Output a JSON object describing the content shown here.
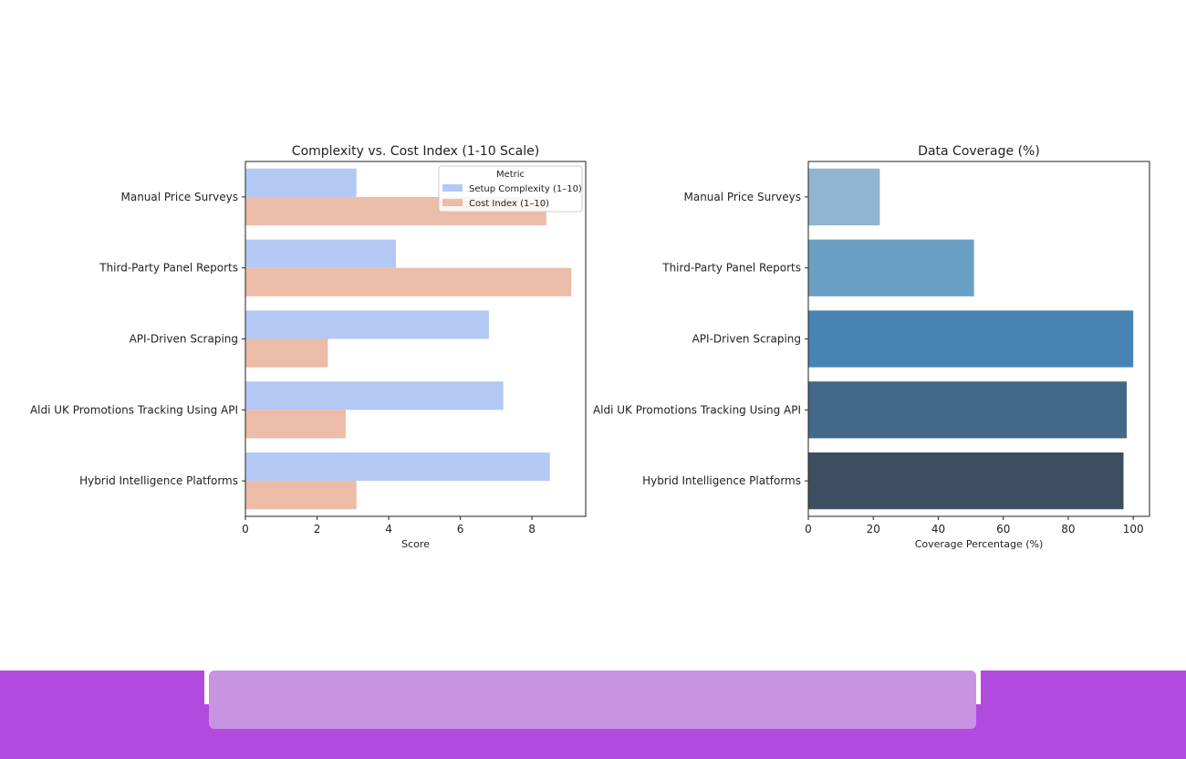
{
  "chart_data": [
    {
      "type": "bar",
      "orientation": "horizontal",
      "title": "Complexity vs. Cost Index (1-10 Scale)",
      "xlabel": "Score",
      "ylabel": "",
      "xlim": [
        0,
        9.5
      ],
      "xticks": [
        "0",
        "2",
        "4",
        "6",
        "8"
      ],
      "categories": [
        "Manual Price Surveys",
        "Third-Party Panel Reports",
        "API-Driven Scraping",
        "Aldi UK Promotions Tracking Using API",
        "Hybrid Intelligence Platforms"
      ],
      "series": [
        {
          "name": "Setup Complexity (1–10)",
          "values": [
            3.1,
            4.2,
            6.8,
            7.2,
            8.5
          ],
          "color": "#b3c9f4"
        },
        {
          "name": "Cost Index (1–10)",
          "values": [
            8.4,
            9.1,
            2.3,
            2.8,
            3.1
          ],
          "color": "#ebbca8"
        }
      ],
      "legend": {
        "title": "Metric",
        "position": "top-right"
      },
      "grid": false
    },
    {
      "type": "bar",
      "orientation": "horizontal",
      "title": "Data Coverage (%)",
      "xlabel": "Coverage Percentage (%)",
      "ylabel": "",
      "xlim": [
        0,
        105
      ],
      "xticks": [
        "0",
        "20",
        "40",
        "60",
        "80",
        "100"
      ],
      "categories": [
        "Manual Price Surveys",
        "Third-Party Panel Reports",
        "API-Driven Scraping",
        "Aldi UK Promotions Tracking Using API",
        "Hybrid Intelligence Platforms"
      ],
      "values": [
        22,
        51,
        100,
        98,
        97
      ],
      "colors": [
        "#91b4d1",
        "#6aa0c3",
        "#4784b3",
        "#426888",
        "#3c4e60"
      ],
      "grid": false
    }
  ],
  "footer": {
    "bar_color": "#b24ae0",
    "panel_color": "#c893e0"
  }
}
